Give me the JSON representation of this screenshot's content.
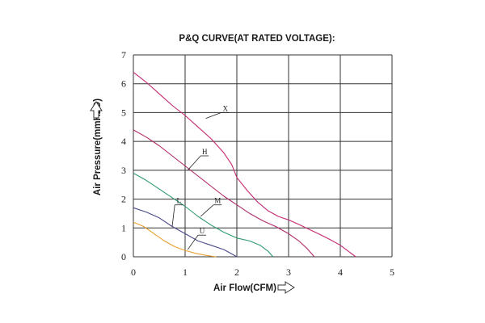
{
  "chart_data": {
    "type": "line",
    "title": "P&Q CURVE(AT RATED VOLTAGE):",
    "xlabel": "Air Flow(CFM)",
    "ylabel": "Air Pressure(mmH2O)",
    "xlim": [
      0,
      5
    ],
    "ylim": [
      0,
      7
    ],
    "xticks": [
      "0",
      "1",
      "2",
      "3",
      "4",
      "5"
    ],
    "yticks": [
      "0",
      "1",
      "2",
      "3",
      "4",
      "5",
      "6",
      "7"
    ],
    "grid": true,
    "series": [
      {
        "name": "X",
        "color": "#c42870",
        "points": [
          [
            0,
            6.4
          ],
          [
            0.25,
            6.05
          ],
          [
            0.5,
            5.65
          ],
          [
            0.75,
            5.25
          ],
          [
            1.0,
            4.9
          ],
          [
            1.25,
            4.5
          ],
          [
            1.5,
            4.1
          ],
          [
            1.75,
            3.6
          ],
          [
            1.9,
            3.2
          ],
          [
            2.0,
            2.75
          ],
          [
            2.2,
            2.3
          ],
          [
            2.4,
            1.9
          ],
          [
            2.6,
            1.6
          ],
          [
            2.8,
            1.4
          ],
          [
            3.0,
            1.28
          ],
          [
            3.2,
            1.12
          ],
          [
            3.4,
            0.95
          ],
          [
            3.6,
            0.78
          ],
          [
            3.8,
            0.6
          ],
          [
            4.0,
            0.4
          ],
          [
            4.15,
            0.2
          ],
          [
            4.3,
            0.0
          ]
        ]
      },
      {
        "name": "H",
        "color": "#b02a68",
        "points": [
          [
            0,
            4.4
          ],
          [
            0.25,
            4.15
          ],
          [
            0.5,
            3.85
          ],
          [
            0.75,
            3.5
          ],
          [
            1.0,
            3.15
          ],
          [
            1.25,
            2.8
          ],
          [
            1.5,
            2.45
          ],
          [
            1.75,
            2.1
          ],
          [
            2.0,
            1.8
          ],
          [
            2.25,
            1.5
          ],
          [
            2.5,
            1.25
          ],
          [
            2.75,
            1.05
          ],
          [
            3.0,
            0.8
          ],
          [
            3.2,
            0.55
          ],
          [
            3.35,
            0.3
          ],
          [
            3.5,
            0.0
          ]
        ]
      },
      {
        "name": "M",
        "color": "#2e9a6e",
        "points": [
          [
            0,
            2.9
          ],
          [
            0.25,
            2.65
          ],
          [
            0.5,
            2.35
          ],
          [
            0.75,
            2.05
          ],
          [
            1.0,
            1.75
          ],
          [
            1.25,
            1.4
          ],
          [
            1.5,
            1.1
          ],
          [
            1.75,
            0.85
          ],
          [
            2.0,
            0.65
          ],
          [
            2.25,
            0.55
          ],
          [
            2.45,
            0.4
          ],
          [
            2.6,
            0.2
          ],
          [
            2.7,
            0.0
          ]
        ]
      },
      {
        "name": "L",
        "color": "#4a4a8a",
        "points": [
          [
            0,
            1.7
          ],
          [
            0.25,
            1.55
          ],
          [
            0.5,
            1.35
          ],
          [
            0.75,
            1.05
          ],
          [
            1.0,
            0.8
          ],
          [
            1.25,
            0.55
          ],
          [
            1.5,
            0.4
          ],
          [
            1.75,
            0.25
          ],
          [
            1.9,
            0.1
          ],
          [
            2.0,
            0.0
          ]
        ]
      },
      {
        "name": "U",
        "color": "#e8a030",
        "points": [
          [
            0,
            1.2
          ],
          [
            0.2,
            1.05
          ],
          [
            0.4,
            0.8
          ],
          [
            0.6,
            0.55
          ],
          [
            0.8,
            0.35
          ],
          [
            1.0,
            0.22
          ],
          [
            1.2,
            0.12
          ],
          [
            1.4,
            0.05
          ],
          [
            1.6,
            0.0
          ]
        ]
      }
    ],
    "annotations": [
      {
        "text": "X",
        "target": [
          1.4,
          4.8
        ],
        "label_pos": [
          1.7,
          5.0
        ]
      },
      {
        "text": "H",
        "target": [
          1.05,
          3.0
        ],
        "label_pos": [
          1.3,
          3.5
        ]
      },
      {
        "text": "M",
        "target": [
          1.3,
          1.4
        ],
        "label_pos": [
          1.55,
          1.8
        ]
      },
      {
        "text": "L",
        "target": [
          0.75,
          1.05
        ],
        "label_pos": [
          0.8,
          1.8
        ]
      },
      {
        "text": "U",
        "target": [
          1.05,
          0.25
        ],
        "label_pos": [
          1.25,
          0.75
        ]
      }
    ]
  }
}
